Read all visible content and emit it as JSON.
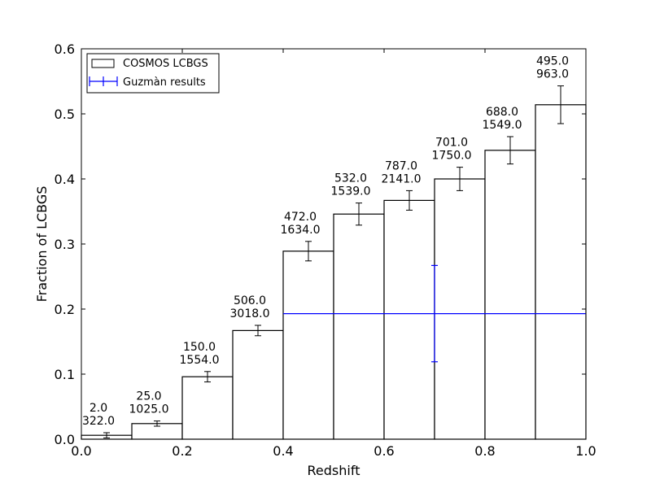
{
  "chart_data": {
    "type": "bar",
    "xlabel": "Redshift",
    "ylabel": "Fraction of LCBGS",
    "xlim": [
      0.0,
      1.0
    ],
    "ylim": [
      0.0,
      0.6
    ],
    "xticks": [
      "0.0",
      "0.2",
      "0.4",
      "0.6",
      "0.8",
      "1.0"
    ],
    "yticks": [
      "0.0",
      "0.1",
      "0.2",
      "0.3",
      "0.4",
      "0.5",
      "0.6"
    ],
    "grid": false,
    "legend_position": "top-left",
    "series": [
      {
        "name": "COSMOS LCBGS",
        "color": "#000000",
        "bins": [
          {
            "x0": 0.0,
            "x1": 0.1,
            "value": 0.006,
            "err": 0.004,
            "count": "2.0",
            "total": "322.0"
          },
          {
            "x0": 0.1,
            "x1": 0.2,
            "value": 0.024,
            "err": 0.004,
            "count": "25.0",
            "total": "1025.0"
          },
          {
            "x0": 0.2,
            "x1": 0.3,
            "value": 0.096,
            "err": 0.008,
            "count": "150.0",
            "total": "1554.0"
          },
          {
            "x0": 0.3,
            "x1": 0.4,
            "value": 0.167,
            "err": 0.008,
            "count": "506.0",
            "total": "3018.0"
          },
          {
            "x0": 0.4,
            "x1": 0.5,
            "value": 0.289,
            "err": 0.015,
            "count": "472.0",
            "total": "1634.0"
          },
          {
            "x0": 0.5,
            "x1": 0.6,
            "value": 0.346,
            "err": 0.017,
            "count": "532.0",
            "total": "1539.0"
          },
          {
            "x0": 0.6,
            "x1": 0.7,
            "value": 0.367,
            "err": 0.015,
            "count": "787.0",
            "total": "2141.0"
          },
          {
            "x0": 0.7,
            "x1": 0.8,
            "value": 0.4,
            "err": 0.018,
            "count": "701.0",
            "total": "1750.0"
          },
          {
            "x0": 0.8,
            "x1": 0.9,
            "value": 0.444,
            "err": 0.021,
            "count": "688.0",
            "total": "1549.0"
          },
          {
            "x0": 0.9,
            "x1": 1.0,
            "value": 0.514,
            "err": 0.029,
            "count": "495.0",
            "total": "963.0"
          }
        ]
      },
      {
        "name": "Guzmàn results",
        "color": "#0000ff",
        "points": [
          {
            "x": 0.7,
            "y": 0.193,
            "xerr_low": 0.3,
            "xerr_high": 0.3,
            "yerr": 0.074
          }
        ]
      }
    ]
  }
}
